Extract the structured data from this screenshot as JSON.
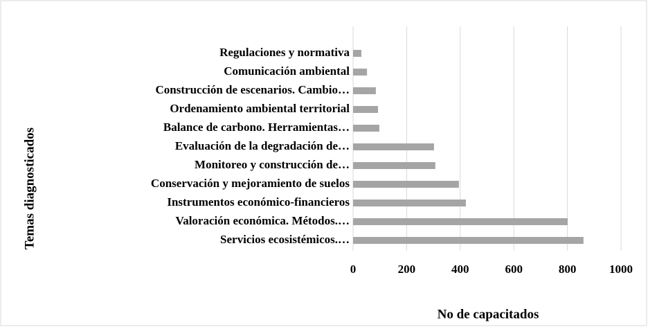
{
  "chart_data": {
    "type": "bar",
    "orientation": "horizontal",
    "categories": [
      "Regulaciones y normativa",
      "Comunicación ambiental",
      "Construcción de escenarios. Cambio…",
      "Ordenamiento ambiental territorial",
      "Balance de carbono. Herramientas…",
      "Evaluación de la degradación de…",
      "Monitoreo y construcción de…",
      "Conservación y mejoramiento de suelos",
      "Instrumentos económico-financieros",
      "Valoración económica. Métodos.…",
      "Servicios ecosistémicos.…"
    ],
    "values": [
      31,
      52,
      85,
      93,
      98,
      302,
      307,
      395,
      421,
      801,
      860
    ],
    "color": "#a5a5a5",
    "xlim": [
      0,
      1000
    ],
    "xticks": [
      0,
      200,
      400,
      600,
      800,
      1000
    ],
    "grid": true,
    "xlabel": "No de capacitados",
    "ylabel": "Temas diagnosticados"
  }
}
